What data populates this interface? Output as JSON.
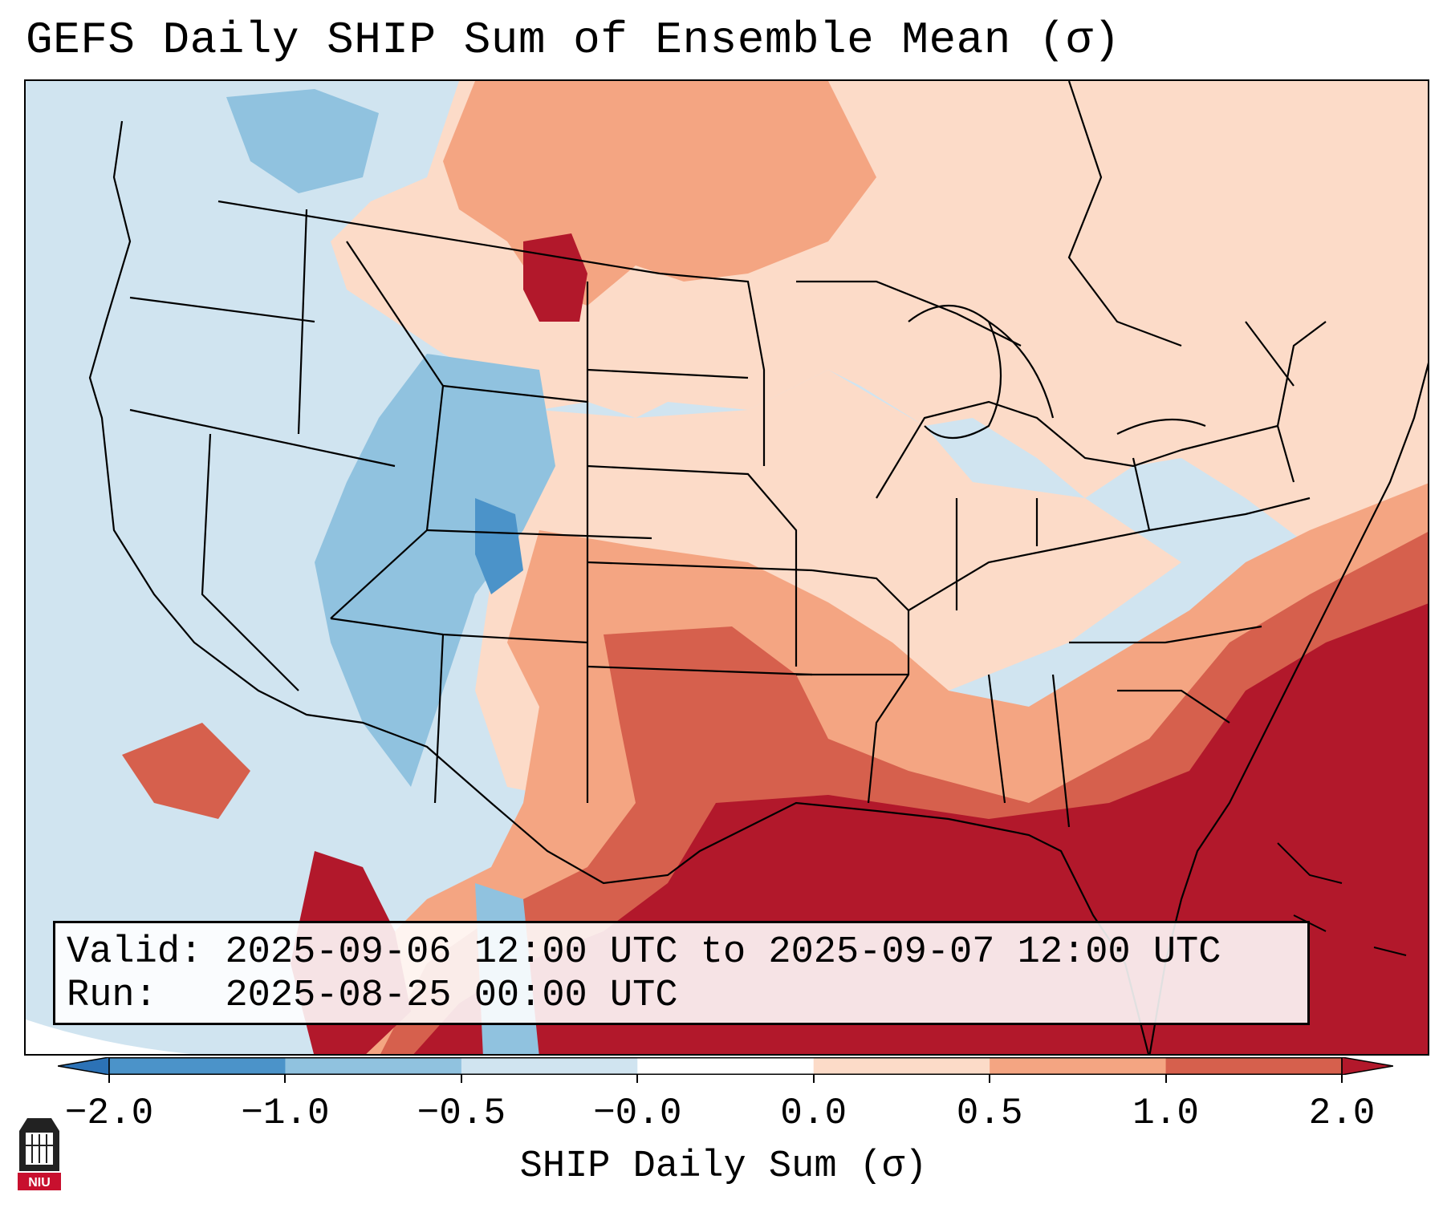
{
  "title": "GEFS Daily SHIP Sum of Ensemble Mean (σ)",
  "info": {
    "valid_label": "Valid:",
    "valid_text": "2025-09-06 12:00 UTC to 2025-09-07 12:00 UTC",
    "run_label": "Run:",
    "run_text": "2025-08-25 00:00 UTC"
  },
  "colorbar": {
    "label": "SHIP Daily Sum (σ)",
    "ticks": [
      "−2.0",
      "−1.0",
      "−0.5",
      "−0.0",
      "0.0",
      "0.5",
      "1.0",
      "2.0"
    ],
    "bins": [
      {
        "range": "< -2.0",
        "color": "#2c72b6"
      },
      {
        "range": "-2.0 to -1.0",
        "color": "#4b93c9"
      },
      {
        "range": "-1.0 to -0.5",
        "color": "#90c2df"
      },
      {
        "range": "-0.5 to 0.0",
        "color": "#d0e4f0"
      },
      {
        "range": "0.0",
        "color": "#ffffff"
      },
      {
        "range": "0.0 to 0.5",
        "color": "#fcdbc8"
      },
      {
        "range": "0.5 to 1.0",
        "color": "#f4a582"
      },
      {
        "range": "1.0 to 2.0",
        "color": "#d6604d"
      },
      {
        "range": "> 2.0",
        "color": "#b2182b"
      }
    ]
  },
  "logo_text": "NIU"
}
